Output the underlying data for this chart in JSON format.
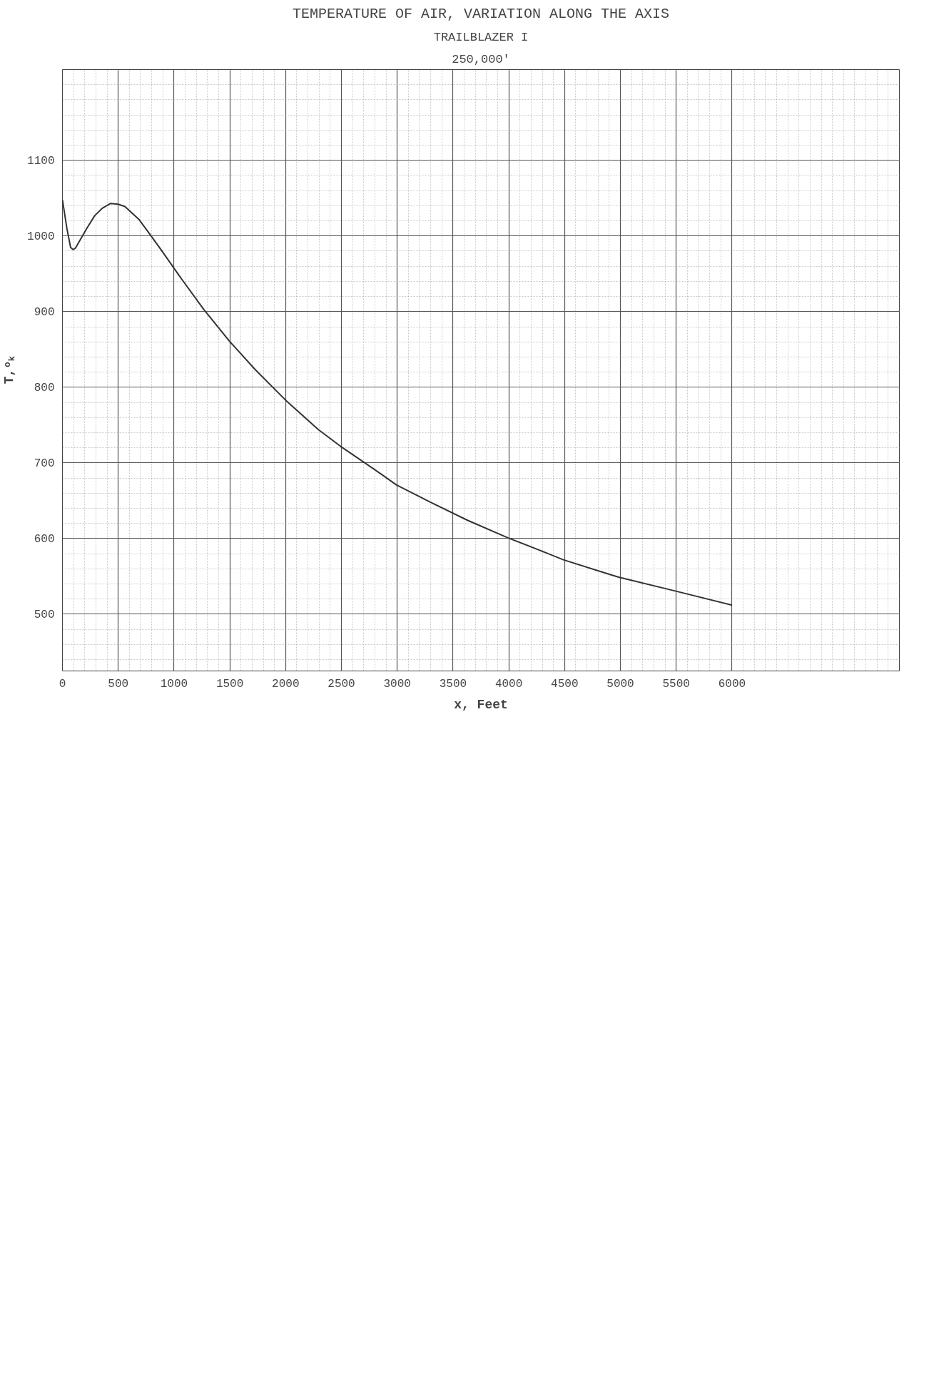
{
  "chart_data": {
    "type": "line",
    "title": "TEMPERATURE OF AIR, VARIATION ALONG THE AXIS",
    "subtitle": "TRAILBLAZER I",
    "annotations": [
      "250,000'"
    ],
    "xlabel": "x, Feet",
    "ylabel": "T,ᵒₖ",
    "x": [
      0,
      40,
      73,
      95,
      117,
      160,
      218,
      290,
      360,
      431,
      500,
      560,
      685,
      780,
      883,
      1044,
      1266,
      1496,
      1730,
      2000,
      2294,
      2492,
      2661,
      2859,
      2992,
      3300,
      3633,
      3992,
      4270,
      4488,
      4875,
      4984,
      5484,
      6000
    ],
    "series": [
      {
        "color": "#333333",
        "values": [
          1048,
          1010,
          985,
          982,
          984,
          995,
          1010,
          1027,
          1037,
          1043,
          1042,
          1039,
          1022,
          1003,
          982,
          948,
          903,
          861,
          823,
          783,
          744,
          722,
          705,
          685,
          671,
          648,
          624,
          601,
          585,
          572,
          554,
          549,
          531,
          512
        ]
      }
    ],
    "xlim": [
      0,
      7500
    ],
    "ylim": [
      425,
      1220
    ],
    "xticks": [
      0,
      500,
      1000,
      1500,
      2000,
      2500,
      3000,
      3500,
      4000,
      4500,
      5000,
      5500,
      6000
    ],
    "yticks": [
      500,
      600,
      700,
      800,
      900,
      1000,
      1100
    ],
    "grid": true,
    "line_style": "solid"
  }
}
